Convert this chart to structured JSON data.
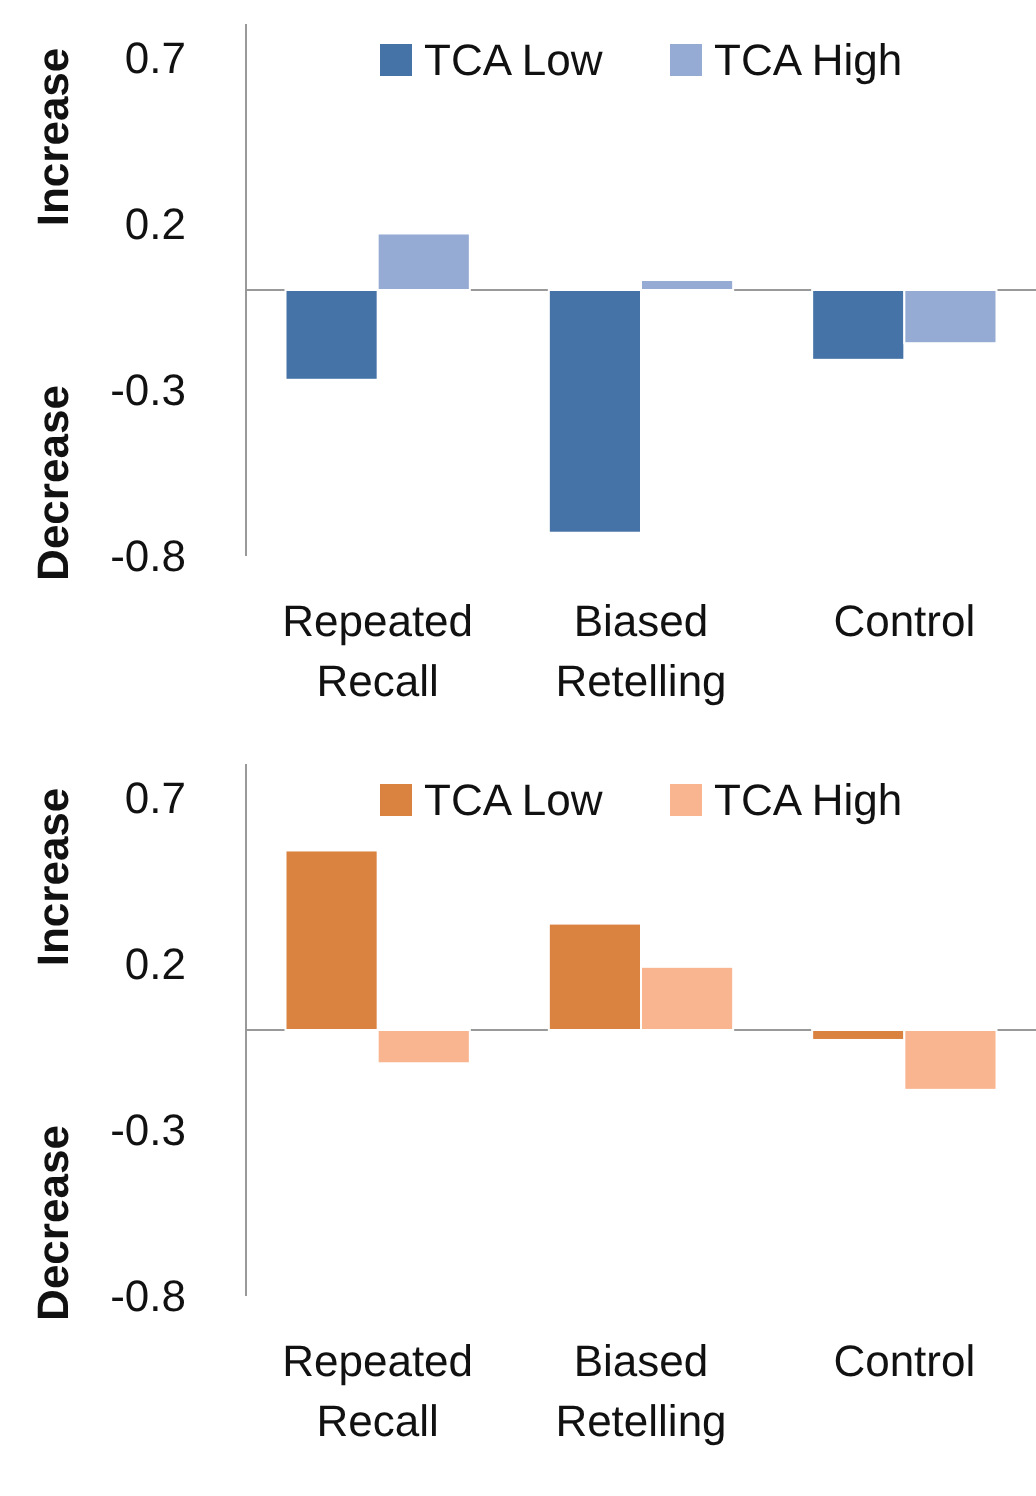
{
  "chart_data": [
    {
      "type": "bar",
      "categories": [
        "Repeated Recall",
        "Biased Retelling",
        "Control"
      ],
      "series": [
        {
          "name": "TCA Low",
          "color": "#4572a7",
          "values": [
            -0.27,
            -0.73,
            -0.21
          ]
        },
        {
          "name": "TCA High",
          "color": "#95abd3",
          "values": [
            0.17,
            0.03,
            -0.16
          ]
        }
      ],
      "ylim": [
        -0.8,
        0.8
      ],
      "yticks": [
        -0.8,
        -0.3,
        0.2,
        0.7
      ],
      "legend": "top right",
      "annotations": [
        "Increase",
        "Decrease"
      ]
    },
    {
      "type": "bar",
      "categories": [
        "Repeated Recall",
        "Biased Retelling",
        "Control"
      ],
      "series": [
        {
          "name": "TCA Low",
          "color": "#da8340",
          "values": [
            0.54,
            0.32,
            -0.03
          ]
        },
        {
          "name": "TCA High",
          "color": "#f9b490",
          "values": [
            -0.1,
            0.19,
            -0.18
          ]
        }
      ],
      "ylim": [
        -0.8,
        0.8
      ],
      "yticks": [
        -0.8,
        -0.3,
        0.2,
        0.7
      ],
      "legend": "top right",
      "annotations": [
        "Increase",
        "Decrease"
      ]
    }
  ]
}
